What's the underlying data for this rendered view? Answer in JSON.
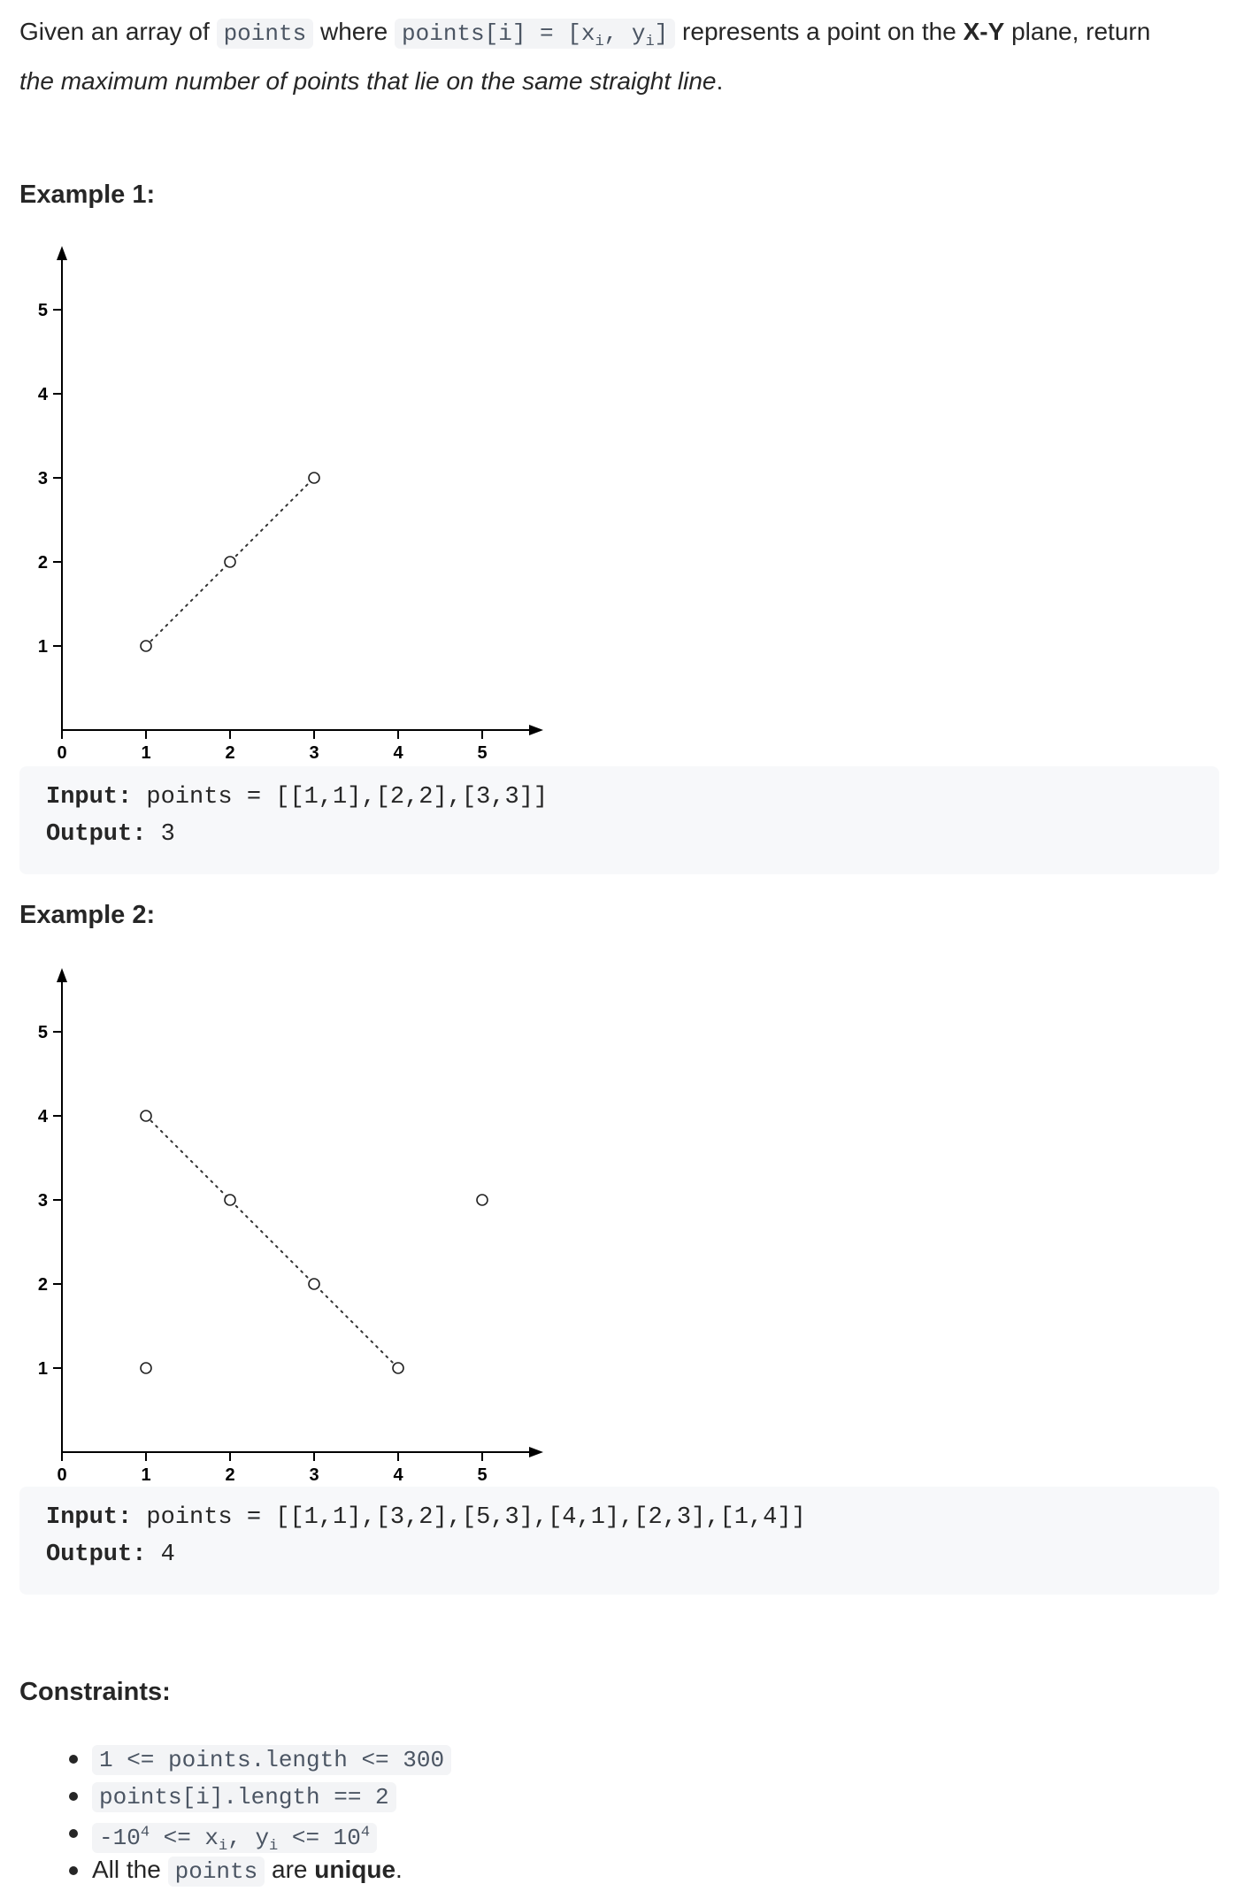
{
  "intro": {
    "p1": "Given an array of ",
    "code1": "points",
    "p2": " where ",
    "code2_a": "points[i] = [x",
    "code2_sub1": "i",
    "code2_b": ", y",
    "code2_sub2": "i",
    "code2_c": "]",
    "p3": " represents a point on the ",
    "bold1": "X-Y",
    "p4": " plane, return ",
    "italic1": "the maximum number of points that lie on the same straight line",
    "p5": "."
  },
  "examples": [
    {
      "heading": "Example 1:",
      "input_label": "Input:",
      "input_value": " points = [[1,1],[2,2],[3,3]]",
      "output_label": "Output:",
      "output_value": " 3"
    },
    {
      "heading": "Example 2:",
      "input_label": "Input:",
      "input_value": " points = [[1,1],[3,2],[5,3],[4,1],[2,3],[1,4]]",
      "output_label": "Output:",
      "output_value": " 4"
    }
  ],
  "chart_data": [
    {
      "type": "scatter",
      "xlim": [
        0,
        5
      ],
      "ylim": [
        0,
        5
      ],
      "x_ticks": [
        "0",
        "1",
        "2",
        "3",
        "4",
        "5"
      ],
      "y_ticks": [
        "1",
        "2",
        "3",
        "4",
        "5"
      ],
      "points": [
        [
          1,
          1
        ],
        [
          2,
          2
        ],
        [
          3,
          3
        ]
      ],
      "line": [
        [
          1,
          1
        ],
        [
          2,
          2
        ],
        [
          3,
          3
        ]
      ],
      "grid": false
    },
    {
      "type": "scatter",
      "xlim": [
        0,
        5
      ],
      "ylim": [
        0,
        5
      ],
      "x_ticks": [
        "0",
        "1",
        "2",
        "3",
        "4",
        "5"
      ],
      "y_ticks": [
        "1",
        "2",
        "3",
        "4",
        "5"
      ],
      "points": [
        [
          1,
          1
        ],
        [
          3,
          2
        ],
        [
          5,
          3
        ],
        [
          4,
          1
        ],
        [
          2,
          3
        ],
        [
          1,
          4
        ]
      ],
      "line": [
        [
          1,
          4
        ],
        [
          2,
          3
        ],
        [
          3,
          2
        ],
        [
          4,
          1
        ]
      ],
      "grid": false
    }
  ],
  "constraints": {
    "heading": "Constraints:",
    "c1": "1 <= points.length <= 300",
    "c2": "points[i].length == 2",
    "c3_a": "-10",
    "c3_sup1": "4",
    "c3_b": " <= x",
    "c3_sub1": "i",
    "c3_c": ", y",
    "c3_sub2": "i",
    "c3_d": " <= 10",
    "c3_sup2": "4",
    "c4_a": "All the ",
    "c4_code": "points",
    "c4_b": " are ",
    "c4_bold": "unique",
    "c4_c": "."
  }
}
